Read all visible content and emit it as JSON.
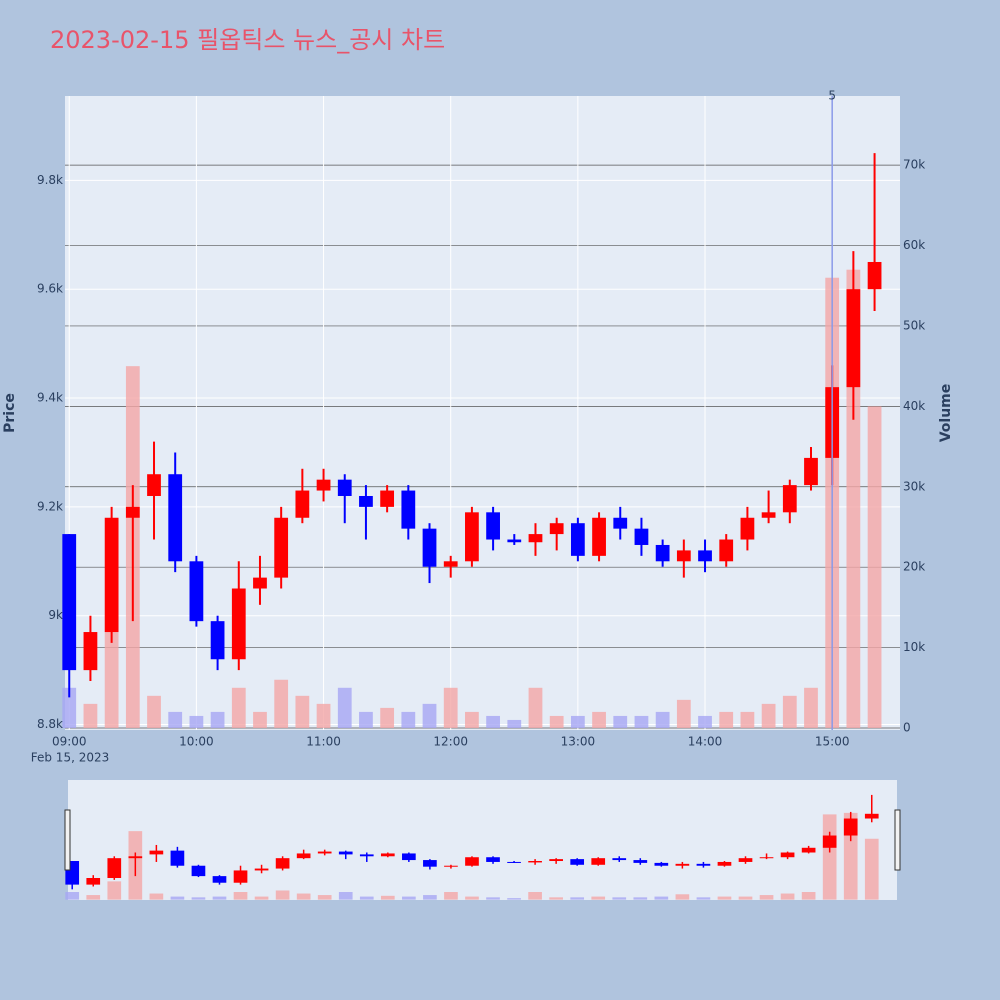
{
  "chart_data": {
    "type": "candlestick",
    "title": "2023-02-15 필옵틱스 뉴스_공시 차트",
    "y_title": "Price",
    "y2_title": "Volume",
    "x": [
      "2023-02-15 09:00",
      "2023-02-15 09:10",
      "2023-02-15 09:20",
      "2023-02-15 09:30",
      "2023-02-15 09:40",
      "2023-02-15 09:50",
      "2023-02-15 10:00",
      "2023-02-15 10:10",
      "2023-02-15 10:20",
      "2023-02-15 10:30",
      "2023-02-15 10:40",
      "2023-02-15 10:50",
      "2023-02-15 11:00",
      "2023-02-15 11:10",
      "2023-02-15 11:20",
      "2023-02-15 11:30",
      "2023-02-15 11:40",
      "2023-02-15 11:50",
      "2023-02-15 12:00",
      "2023-02-15 12:10",
      "2023-02-15 12:20",
      "2023-02-15 12:30",
      "2023-02-15 12:40",
      "2023-02-15 12:50",
      "2023-02-15 13:00",
      "2023-02-15 13:10",
      "2023-02-15 13:20",
      "2023-02-15 13:30",
      "2023-02-15 13:40",
      "2023-02-15 13:50",
      "2023-02-15 14:00",
      "2023-02-15 14:10",
      "2023-02-15 14:20",
      "2023-02-15 14:30",
      "2023-02-15 14:40",
      "2023-02-15 14:50",
      "2023-02-15 15:00",
      "2023-02-15 15:10",
      "2023-02-15 15:20"
    ],
    "open": [
      9150,
      8900,
      8970,
      9180,
      9220,
      9260,
      9100,
      8990,
      8920,
      9050,
      9070,
      9180,
      9230,
      9250,
      9220,
      9200,
      9230,
      9160,
      9090,
      9100,
      9190,
      9140,
      9135,
      9150,
      9170,
      9110,
      9180,
      9160,
      9130,
      9100,
      9120,
      9100,
      9140,
      9180,
      9190,
      9240,
      9290,
      9420,
      9600
    ],
    "high": [
      9150,
      9000,
      9200,
      9240,
      9320,
      9300,
      9110,
      9000,
      9100,
      9110,
      9200,
      9270,
      9270,
      9260,
      9240,
      9240,
      9240,
      9170,
      9110,
      9200,
      9200,
      9150,
      9170,
      9180,
      9180,
      9190,
      9200,
      9180,
      9140,
      9140,
      9140,
      9150,
      9200,
      9230,
      9250,
      9310,
      9460,
      9670,
      9850
    ],
    "low": [
      8850,
      8880,
      8950,
      8990,
      9140,
      9080,
      8980,
      8900,
      8900,
      9020,
      9050,
      9170,
      9210,
      9170,
      9140,
      9190,
      9140,
      9060,
      9070,
      9090,
      9120,
      9130,
      9110,
      9120,
      9100,
      9100,
      9140,
      9110,
      9090,
      9070,
      9080,
      9090,
      9120,
      9170,
      9170,
      9230,
      9240,
      9360,
      9560
    ],
    "close": [
      8900,
      8970,
      9180,
      9200,
      9260,
      9100,
      8990,
      8920,
      9050,
      9070,
      9180,
      9230,
      9250,
      9220,
      9200,
      9230,
      9160,
      9090,
      9100,
      9190,
      9140,
      9135,
      9150,
      9170,
      9110,
      9180,
      9160,
      9130,
      9100,
      9120,
      9100,
      9140,
      9180,
      9190,
      9240,
      9290,
      9420,
      9600,
      9650
    ],
    "volume": [
      5000,
      3000,
      12000,
      45000,
      4000,
      2000,
      1500,
      2000,
      5000,
      2000,
      6000,
      4000,
      3000,
      5000,
      2000,
      2500,
      2000,
      3000,
      5000,
      2000,
      1500,
      1000,
      5000,
      1500,
      1500,
      2000,
      1500,
      1500,
      2000,
      3500,
      1500,
      2000,
      2000,
      3000,
      4000,
      5000,
      56000,
      57000,
      40000
    ],
    "increasing_color": "#ff0000",
    "decreasing_color": "#0000ff",
    "volume_increasing_color": "#f4a6a6",
    "volume_decreasing_color": "#a6a6f4",
    "xlim": [
      "2023-02-15 08:58",
      "2023-02-15 15:32"
    ],
    "xticks": [
      {
        "value": "2023-02-15 09:00",
        "label": "09:00"
      },
      {
        "value": "2023-02-15 10:00",
        "label": "10:00"
      },
      {
        "value": "2023-02-15 11:00",
        "label": "11:00"
      },
      {
        "value": "2023-02-15 12:00",
        "label": "12:00"
      },
      {
        "value": "2023-02-15 13:00",
        "label": "13:00"
      },
      {
        "value": "2023-02-15 14:00",
        "label": "14:00"
      },
      {
        "value": "2023-02-15 15:00",
        "label": "15:00"
      }
    ],
    "x_date_label": "Feb 15, 2023",
    "ylim": [
      8790,
      9955
    ],
    "yticks": [
      {
        "value": 8800,
        "label": "8.8k"
      },
      {
        "value": 9000,
        "label": "9k"
      },
      {
        "value": 9200,
        "label": "9.2k"
      },
      {
        "value": 9400,
        "label": "9.4k"
      },
      {
        "value": 9600,
        "label": "9.6k"
      },
      {
        "value": 9800,
        "label": "9.8k"
      }
    ],
    "y2lim": [
      -250,
      78600
    ],
    "y2ticks": [
      0,
      {
        "value": 10000,
        "label": "10k"
      },
      {
        "value": 20000,
        "label": "20k"
      },
      {
        "value": 30000,
        "label": "30k"
      },
      {
        "value": 40000,
        "label": "40k"
      },
      {
        "value": 50000,
        "label": "50k"
      },
      {
        "value": 60000,
        "label": "60k"
      },
      {
        "value": 70000,
        "label": "70k"
      }
    ],
    "grid": true,
    "annotations": [
      {
        "x": "2023-02-15 15:00",
        "text": "5"
      }
    ]
  }
}
